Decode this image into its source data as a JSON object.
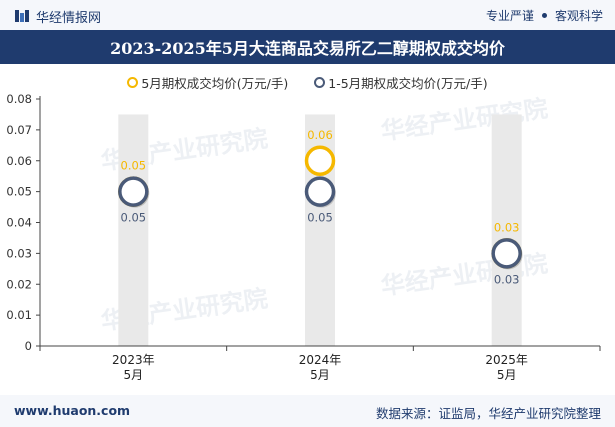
{
  "header": {
    "brand": "华经情报网",
    "right_label_1": "专业严谨",
    "right_label_2": "客观科学"
  },
  "title": "2023-2025年5月大连商品交易所乙二醇期权成交均价",
  "footer": {
    "website": "www.huaon.com",
    "source": "数据来源：证监局，华经产业研究院整理"
  },
  "watermark": "华经产业研究院",
  "colors": {
    "series1": "#f5b800",
    "series2": "#4a5a78",
    "band": "#e9e9e9",
    "title_bg": "#1f3b6e"
  },
  "chart_data": {
    "type": "scatter",
    "title": "2023-2025年5月大连商品交易所乙二醇期权成交均价",
    "categories": [
      "2023年5月",
      "2024年5月",
      "2025年5月"
    ],
    "category_lines": [
      [
        "2023年",
        "5月"
      ],
      [
        "2024年",
        "5月"
      ],
      [
        "2025年",
        "5月"
      ]
    ],
    "series": [
      {
        "name": "5月期权成交均价(万元/手)",
        "values": [
          0.05,
          0.06,
          0.03
        ]
      },
      {
        "name": "1-5月期权成交均价(万元/手)",
        "values": [
          0.05,
          0.05,
          0.03
        ]
      }
    ],
    "ylim": [
      0,
      0.08
    ],
    "yticks": [
      0,
      0.01,
      0.02,
      0.03,
      0.04,
      0.05,
      0.06,
      0.07,
      0.08
    ],
    "ytick_labels": [
      "0",
      "0.01",
      "0.02",
      "0.03",
      "0.04",
      "0.05",
      "0.06",
      "0.07",
      "0.08"
    ],
    "series1_labels": [
      "0.05",
      "0.06",
      "0.03"
    ],
    "series2_labels": [
      "0.05",
      "0.05",
      "0.03"
    ],
    "legend_position": "top-center",
    "grid": false
  }
}
